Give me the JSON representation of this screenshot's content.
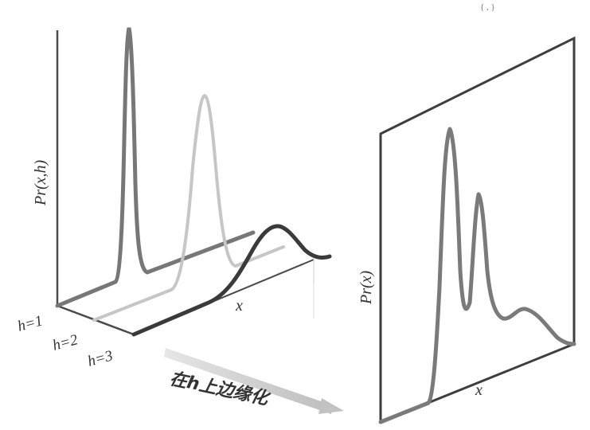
{
  "left_panel": {
    "y_label": "Pr(x,h)",
    "x_label": "x",
    "h_labels": [
      "h=1",
      "h=2",
      "h=3"
    ]
  },
  "right_panel": {
    "y_label": "Pr(x)",
    "x_label": "x"
  },
  "arrow_label": "在h上边缘化",
  "corner_text": "{ , }"
}
